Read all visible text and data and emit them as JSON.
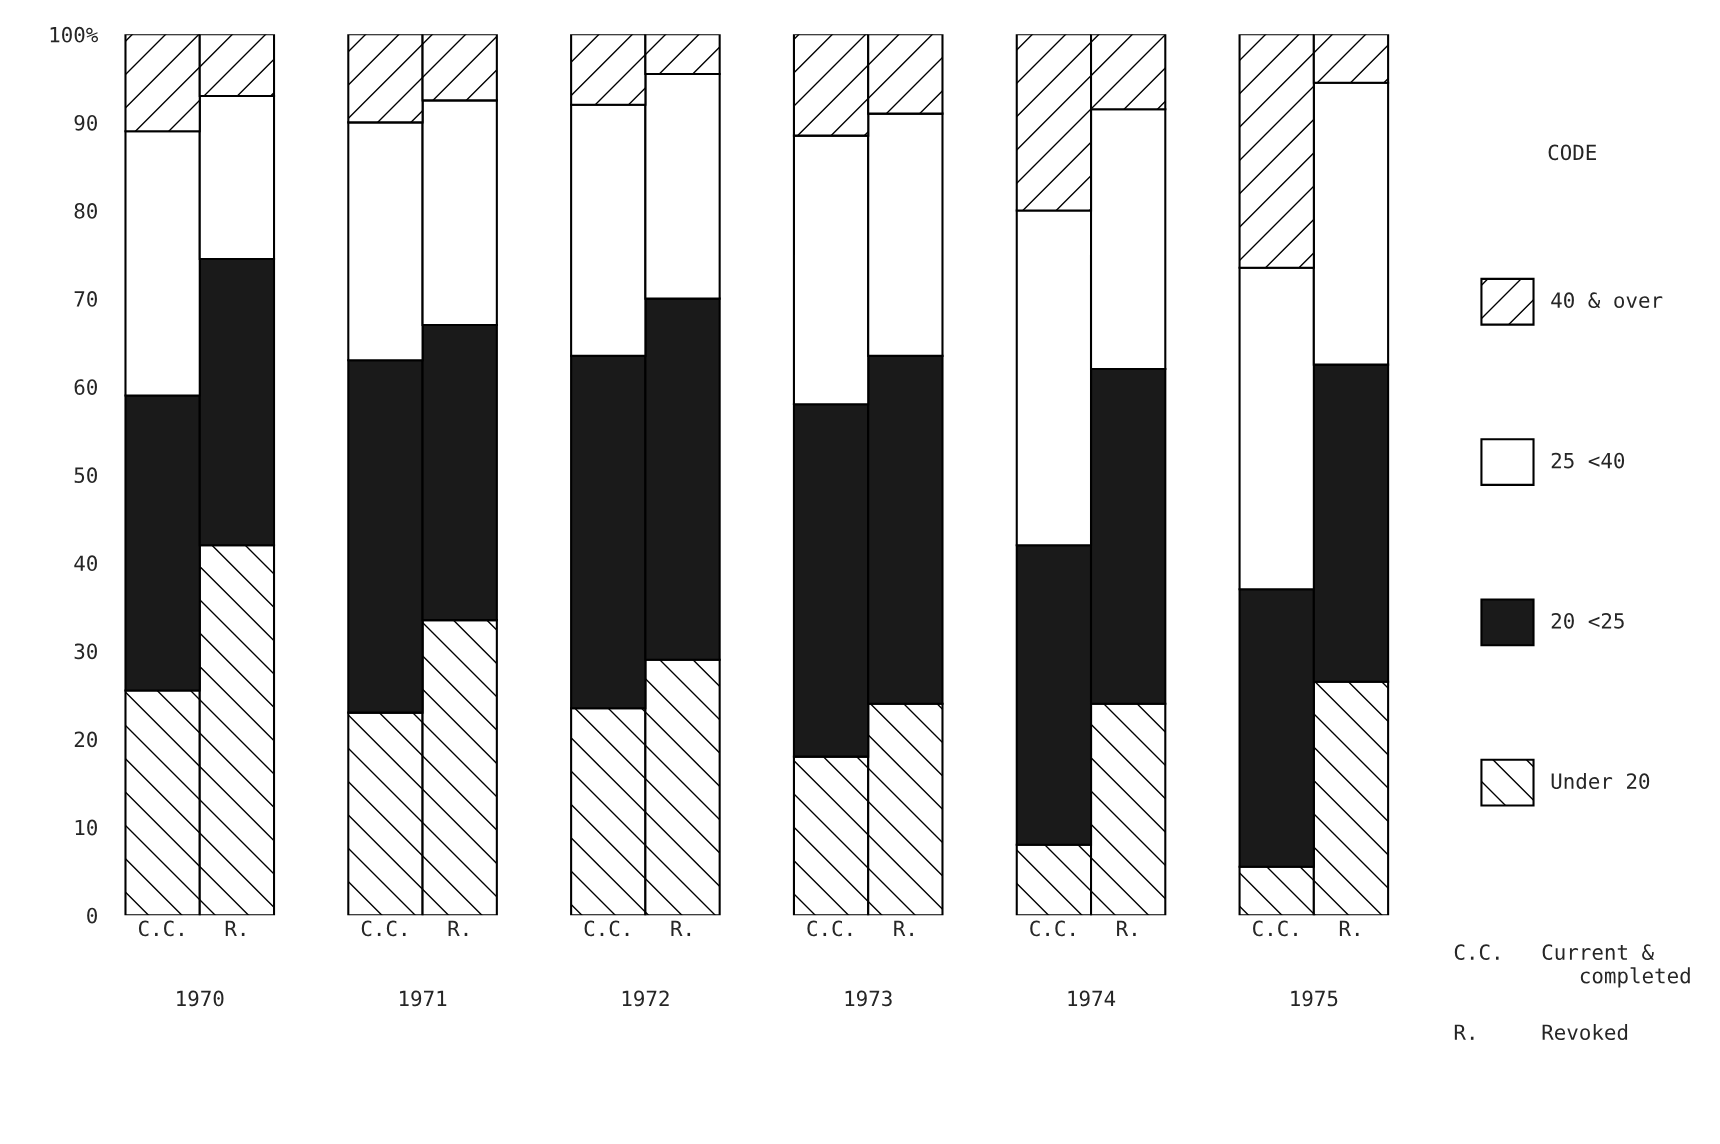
{
  "chart_data": {
    "type": "bar",
    "stacked": true,
    "categories": [
      "C.C.",
      "R.",
      "C.C.",
      "R.",
      "C.C.",
      "R.",
      "C.C.",
      "R.",
      "C.C.",
      "R.",
      "C.C.",
      "R."
    ],
    "series": [
      {
        "name": "Under 20",
        "color": "#000000",
        "values": [
          25.5,
          42,
          23,
          33.5,
          23.5,
          29,
          18,
          24,
          8,
          24,
          5.5,
          26.5
        ]
      },
      {
        "name": "20 <25",
        "color": "#1a1a1a",
        "values": [
          33.5,
          32.5,
          40,
          33.5,
          40,
          41,
          40,
          39.5,
          34,
          38,
          31.5,
          36
        ]
      },
      {
        "name": "25 <40",
        "color": "#ffffff",
        "values": [
          30,
          18.5,
          27,
          25.5,
          28.5,
          25.5,
          30.5,
          27.5,
          38,
          29.5,
          36.5,
          32
        ]
      },
      {
        "name": "40 & over",
        "color": "#000000",
        "values": [
          11,
          7,
          10,
          7.5,
          8,
          4.5,
          11.5,
          9,
          20,
          8.5,
          26.5,
          5.5
        ]
      }
    ],
    "ylim": [
      0,
      100
    ],
    "yticks": [
      0,
      10,
      20,
      30,
      40,
      50,
      60,
      70,
      80,
      90,
      {
        "value": 100,
        "label": "100%"
      }
    ],
    "legend": "right",
    "legend_title": "CODE",
    "grid": false,
    "annotations": [
      "1970",
      "1971",
      "1972",
      "1973",
      "1974",
      "1975",
      "C.C.   Current &\n          completed",
      "R.     Revoked"
    ]
  }
}
